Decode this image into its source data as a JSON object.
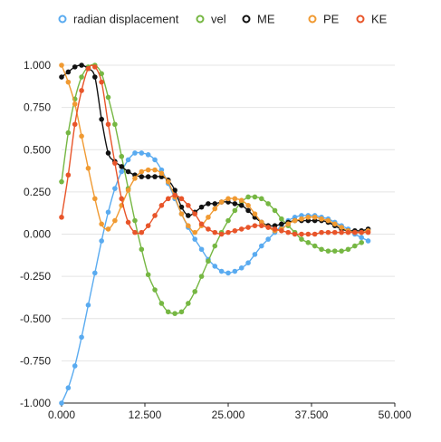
{
  "chart_data": {
    "type": "scatter",
    "title": "",
    "xlabel": "",
    "ylabel": "",
    "xlim": [
      0,
      50
    ],
    "ylim": [
      -1,
      1
    ],
    "x_ticks": [
      "0.000",
      "12.500",
      "25.000",
      "37.500",
      "50.000"
    ],
    "y_ticks": [
      "1.000",
      "0.750",
      "0.500",
      "0.250",
      "0.000",
      "-0.250",
      "-0.500",
      "-0.750",
      "-1.000"
    ],
    "grid": "horizontal",
    "legend_position": "top",
    "smooth_lines": true,
    "series": [
      {
        "name": "radian displacement",
        "color": "#5aabf0",
        "points": [
          [
            0,
            -1.0
          ],
          [
            1,
            -0.91
          ],
          [
            2,
            -0.78
          ],
          [
            3,
            -0.61
          ],
          [
            4,
            -0.42
          ],
          [
            5,
            -0.23
          ],
          [
            6,
            -0.04
          ],
          [
            7,
            0.13
          ],
          [
            8,
            0.27
          ],
          [
            9,
            0.37
          ],
          [
            10,
            0.44
          ],
          [
            11,
            0.48
          ],
          [
            12,
            0.48
          ],
          [
            13,
            0.47
          ],
          [
            14,
            0.44
          ],
          [
            15,
            0.38
          ],
          [
            16,
            0.3
          ],
          [
            17,
            0.21
          ],
          [
            18,
            0.12
          ],
          [
            19,
            0.04
          ],
          [
            20,
            -0.03
          ],
          [
            21,
            -0.09
          ],
          [
            22,
            -0.15
          ],
          [
            23,
            -0.19
          ],
          [
            24,
            -0.22
          ],
          [
            25,
            -0.23
          ],
          [
            26,
            -0.22
          ],
          [
            27,
            -0.2
          ],
          [
            28,
            -0.17
          ],
          [
            29,
            -0.12
          ],
          [
            30,
            -0.07
          ],
          [
            31,
            -0.03
          ],
          [
            32,
            0.01
          ],
          [
            33,
            0.05
          ],
          [
            34,
            0.08
          ],
          [
            35,
            0.1
          ],
          [
            36,
            0.11
          ],
          [
            37,
            0.11
          ],
          [
            38,
            0.11
          ],
          [
            39,
            0.1
          ],
          [
            40,
            0.09
          ],
          [
            41,
            0.07
          ],
          [
            42,
            0.05
          ],
          [
            43,
            0.03
          ],
          [
            44,
            0.0
          ],
          [
            45,
            -0.02
          ],
          [
            46,
            -0.04
          ]
        ]
      },
      {
        "name": "vel",
        "color": "#76b743",
        "points": [
          [
            0,
            0.31
          ],
          [
            1,
            0.6
          ],
          [
            2,
            0.8
          ],
          [
            3,
            0.93
          ],
          [
            4,
            0.99
          ],
          [
            5,
            1.0
          ],
          [
            6,
            0.95
          ],
          [
            7,
            0.81
          ],
          [
            8,
            0.65
          ],
          [
            9,
            0.46
          ],
          [
            10,
            0.27
          ],
          [
            11,
            0.08
          ],
          [
            12,
            -0.09
          ],
          [
            13,
            -0.24
          ],
          [
            14,
            -0.33
          ],
          [
            15,
            -0.41
          ],
          [
            16,
            -0.46
          ],
          [
            17,
            -0.47
          ],
          [
            18,
            -0.46
          ],
          [
            19,
            -0.41
          ],
          [
            20,
            -0.34
          ],
          [
            21,
            -0.25
          ],
          [
            22,
            -0.16
          ],
          [
            23,
            -0.07
          ],
          [
            24,
            0.01
          ],
          [
            25,
            0.08
          ],
          [
            26,
            0.14
          ],
          [
            27,
            0.19
          ],
          [
            28,
            0.22
          ],
          [
            29,
            0.22
          ],
          [
            30,
            0.21
          ],
          [
            31,
            0.18
          ],
          [
            32,
            0.14
          ],
          [
            33,
            0.09
          ],
          [
            34,
            0.05
          ],
          [
            35,
            0.01
          ],
          [
            36,
            -0.03
          ],
          [
            37,
            -0.05
          ],
          [
            38,
            -0.07
          ],
          [
            39,
            -0.09
          ],
          [
            40,
            -0.1
          ],
          [
            41,
            -0.1
          ],
          [
            42,
            -0.1
          ],
          [
            43,
            -0.09
          ],
          [
            44,
            -0.07
          ],
          [
            45,
            -0.05
          ]
        ]
      },
      {
        "name": "ME",
        "color": "#111111",
        "points": [
          [
            0,
            0.93
          ],
          [
            1,
            0.96
          ],
          [
            2,
            0.99
          ],
          [
            3,
            1.0
          ],
          [
            4,
            0.98
          ],
          [
            5,
            0.93
          ],
          [
            6,
            0.68
          ],
          [
            7,
            0.48
          ],
          [
            8,
            0.43
          ],
          [
            9,
            0.4
          ],
          [
            10,
            0.37
          ],
          [
            11,
            0.35
          ],
          [
            12,
            0.34
          ],
          [
            13,
            0.34
          ],
          [
            14,
            0.34
          ],
          [
            15,
            0.34
          ],
          [
            16,
            0.32
          ],
          [
            17,
            0.26
          ],
          [
            18,
            0.16
          ],
          [
            19,
            0.11
          ],
          [
            20,
            0.13
          ],
          [
            21,
            0.16
          ],
          [
            22,
            0.18
          ],
          [
            23,
            0.18
          ],
          [
            24,
            0.19
          ],
          [
            25,
            0.19
          ],
          [
            26,
            0.18
          ],
          [
            27,
            0.17
          ],
          [
            28,
            0.14
          ],
          [
            29,
            0.1
          ],
          [
            30,
            0.07
          ],
          [
            31,
            0.05
          ],
          [
            32,
            0.05
          ],
          [
            33,
            0.06
          ],
          [
            34,
            0.07
          ],
          [
            35,
            0.08
          ],
          [
            36,
            0.08
          ],
          [
            37,
            0.08
          ],
          [
            38,
            0.08
          ],
          [
            39,
            0.08
          ],
          [
            40,
            0.07
          ],
          [
            41,
            0.05
          ],
          [
            42,
            0.03
          ],
          [
            43,
            0.02
          ],
          [
            44,
            0.02
          ],
          [
            45,
            0.02
          ],
          [
            46,
            0.03
          ]
        ]
      },
      {
        "name": "PE",
        "color": "#f09a32",
        "points": [
          [
            0,
            1.0
          ],
          [
            1,
            0.9
          ],
          [
            2,
            0.77
          ],
          [
            3,
            0.58
          ],
          [
            4,
            0.39
          ],
          [
            5,
            0.21
          ],
          [
            6,
            0.06
          ],
          [
            7,
            0.03
          ],
          [
            8,
            0.08
          ],
          [
            9,
            0.17
          ],
          [
            10,
            0.26
          ],
          [
            11,
            0.33
          ],
          [
            12,
            0.37
          ],
          [
            13,
            0.38
          ],
          [
            14,
            0.38
          ],
          [
            15,
            0.36
          ],
          [
            16,
            0.31
          ],
          [
            17,
            0.22
          ],
          [
            18,
            0.12
          ],
          [
            19,
            0.05
          ],
          [
            20,
            0.01
          ],
          [
            21,
            0.05
          ],
          [
            22,
            0.1
          ],
          [
            23,
            0.15
          ],
          [
            24,
            0.19
          ],
          [
            25,
            0.21
          ],
          [
            26,
            0.21
          ],
          [
            27,
            0.2
          ],
          [
            28,
            0.17
          ],
          [
            29,
            0.12
          ],
          [
            30,
            0.07
          ],
          [
            31,
            0.04
          ],
          [
            32,
            0.02
          ],
          [
            33,
            0.03
          ],
          [
            34,
            0.06
          ],
          [
            35,
            0.08
          ],
          [
            36,
            0.09
          ],
          [
            37,
            0.1
          ],
          [
            38,
            0.1
          ],
          [
            39,
            0.09
          ],
          [
            40,
            0.08
          ],
          [
            41,
            0.06
          ],
          [
            42,
            0.04
          ],
          [
            43,
            0.02
          ],
          [
            44,
            0.01
          ],
          [
            45,
            0.01
          ],
          [
            46,
            0.02
          ]
        ]
      },
      {
        "name": "KE",
        "color": "#e8552a",
        "points": [
          [
            0,
            0.1
          ],
          [
            1,
            0.35
          ],
          [
            2,
            0.65
          ],
          [
            3,
            0.85
          ],
          [
            4,
            0.98
          ],
          [
            5,
            0.99
          ],
          [
            6,
            0.9
          ],
          [
            7,
            0.65
          ],
          [
            8,
            0.42
          ],
          [
            9,
            0.21
          ],
          [
            10,
            0.07
          ],
          [
            11,
            0.01
          ],
          [
            12,
            0.01
          ],
          [
            13,
            0.05
          ],
          [
            14,
            0.11
          ],
          [
            15,
            0.17
          ],
          [
            16,
            0.21
          ],
          [
            17,
            0.23
          ],
          [
            18,
            0.21
          ],
          [
            19,
            0.17
          ],
          [
            20,
            0.12
          ],
          [
            21,
            0.06
          ],
          [
            22,
            0.03
          ],
          [
            23,
            0.01
          ],
          [
            24,
            0.0
          ],
          [
            25,
            0.01
          ],
          [
            26,
            0.02
          ],
          [
            27,
            0.03
          ],
          [
            28,
            0.04
          ],
          [
            29,
            0.05
          ],
          [
            30,
            0.05
          ],
          [
            31,
            0.04
          ],
          [
            32,
            0.03
          ],
          [
            33,
            0.02
          ],
          [
            34,
            0.01
          ],
          [
            35,
            0.0
          ],
          [
            36,
            0.0
          ],
          [
            37,
            0.0
          ],
          [
            38,
            0.0
          ],
          [
            39,
            0.01
          ],
          [
            40,
            0.01
          ],
          [
            41,
            0.01
          ],
          [
            42,
            0.01
          ],
          [
            43,
            0.01
          ],
          [
            44,
            0.01
          ],
          [
            45,
            0.01
          ],
          [
            46,
            0.01
          ]
        ]
      }
    ]
  }
}
